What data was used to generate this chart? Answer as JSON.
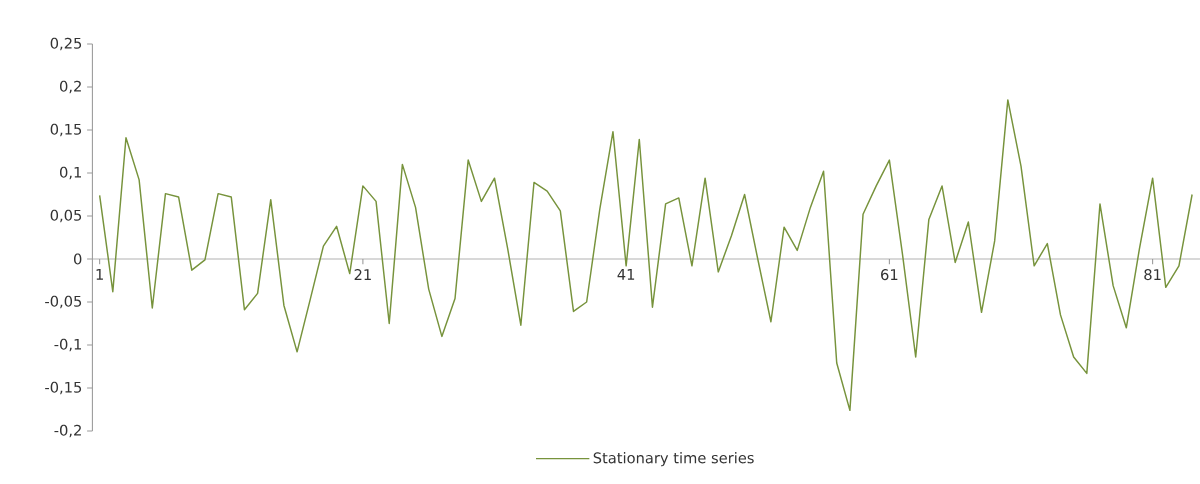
{
  "chart_data": {
    "type": "line",
    "categories": [
      "1",
      null,
      null,
      null,
      null,
      null,
      null,
      null,
      null,
      null,
      null,
      null,
      null,
      null,
      null,
      null,
      null,
      null,
      null,
      null,
      "21",
      null,
      null,
      null,
      null,
      null,
      null,
      null,
      null,
      null,
      null,
      null,
      null,
      null,
      null,
      null,
      null,
      null,
      null,
      null,
      "41",
      null,
      null,
      null,
      null,
      null,
      null,
      null,
      null,
      null,
      null,
      null,
      null,
      null,
      null,
      null,
      null,
      null,
      null,
      null,
      "61",
      null,
      null,
      null,
      null,
      null,
      null,
      null,
      null,
      null,
      null,
      null,
      null,
      null,
      null,
      null,
      null,
      null,
      null,
      null,
      "81",
      null,
      null,
      null
    ],
    "series": [
      {
        "name": "Stationary time series",
        "color": "#77933c",
        "values": [
          0.074,
          -0.038,
          0.141,
          0.092,
          -0.057,
          0.076,
          0.072,
          -0.013,
          -0.001,
          0.076,
          0.072,
          -0.059,
          -0.04,
          0.069,
          -0.054,
          -0.108,
          -0.047,
          0.015,
          0.038,
          -0.017,
          0.085,
          0.067,
          -0.075,
          0.11,
          0.06,
          -0.035,
          -0.09,
          -0.046,
          0.115,
          0.067,
          0.094,
          0.012,
          -0.077,
          0.089,
          0.079,
          0.056,
          -0.061,
          -0.05,
          0.058,
          0.148,
          -0.008,
          0.139,
          -0.056,
          0.064,
          0.071,
          -0.008,
          0.094,
          -0.015,
          0.027,
          0.075,
          0.0,
          -0.073,
          0.037,
          0.01,
          0.06,
          0.102,
          -0.121,
          -0.176,
          0.052,
          0.085,
          0.115,
          0.005,
          -0.114,
          0.046,
          0.085,
          -0.004,
          0.043,
          -0.062,
          0.021,
          0.185,
          0.108,
          -0.008,
          0.018,
          -0.065,
          -0.114,
          -0.133,
          0.064,
          -0.031,
          -0.08,
          0.012,
          0.094,
          -0.033,
          -0.008,
          0.075
        ]
      }
    ],
    "ylim": [
      -0.2,
      0.25
    ],
    "yticks": [
      {
        "value": -0.2,
        "label": "-0,2"
      },
      {
        "value": -0.15,
        "label": "-0,15"
      },
      {
        "value": -0.1,
        "label": "-0,1"
      },
      {
        "value": -0.05,
        "label": "-0,05"
      },
      {
        "value": 0,
        "label": "0"
      },
      {
        "value": 0.05,
        "label": "0,05"
      },
      {
        "value": 0.1,
        "label": "0,1"
      },
      {
        "value": 0.15,
        "label": "0,15"
      },
      {
        "value": 0.2,
        "label": "0,2"
      },
      {
        "value": 0.25,
        "label": "0,25"
      }
    ],
    "legend": "bottom"
  }
}
